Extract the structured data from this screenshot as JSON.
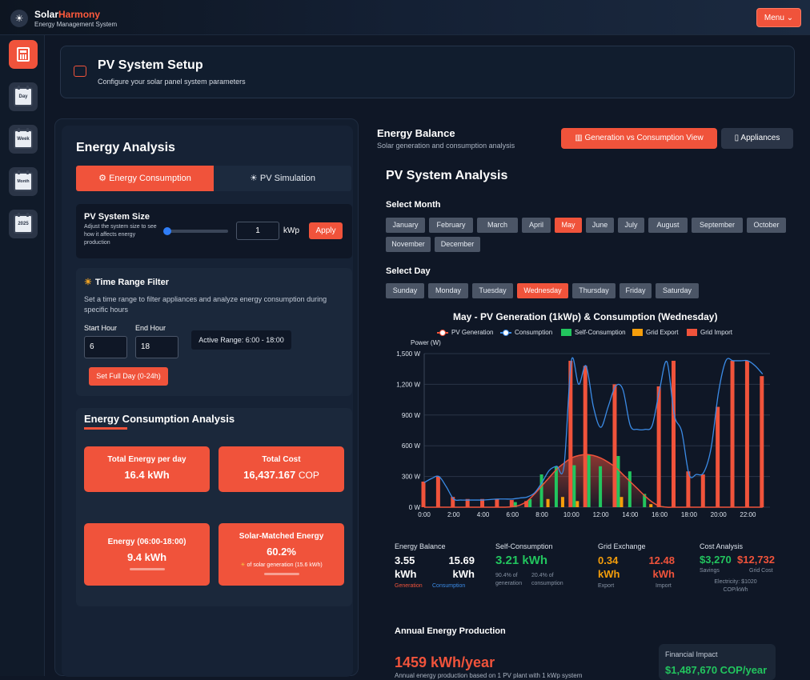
{
  "app": {
    "brand_a": "Solar",
    "brand_b": "Harmony",
    "subtitle": "Energy Management System",
    "menu_label": "Menu ⌄"
  },
  "sidebar": {
    "items": [
      {
        "icon": "calculator-icon",
        "label": ""
      },
      {
        "icon": "calendar-icon",
        "label": "Day"
      },
      {
        "icon": "calendar-icon",
        "label": "Week"
      },
      {
        "icon": "calendar-icon",
        "label": "Month"
      },
      {
        "icon": "calendar-icon",
        "label": "2025"
      }
    ]
  },
  "page_header": {
    "title": "PV System Setup",
    "subtitle": "Configure your solar panel system parameters"
  },
  "energy_analysis": {
    "title": "Energy Analysis",
    "tabs": [
      {
        "label": "Energy Consumption",
        "icon": "chip-icon"
      },
      {
        "label": "PV Simulation",
        "icon": "sun-icon"
      }
    ],
    "pv_size": {
      "title": "PV System Size",
      "description": "Adjust the system size to see how it affects energy production",
      "value": "1",
      "unit": "kWp",
      "apply": "Apply",
      "slider_fraction": 0.05
    },
    "time_filter": {
      "title": "Time Range Filter",
      "description": "Set a time range to filter appliances and analyze energy consumption during specific hours",
      "start_label": "Start Hour",
      "start_value": "6",
      "end_label": "End Hour",
      "end_value": "18",
      "active_range": "Active Range: 6:00 - 18:00",
      "full_day": "Set Full Day (0-24h)"
    },
    "consumption": {
      "title": "Energy Consumption Analysis",
      "total_energy": {
        "label": "Total Energy per day",
        "value": "16.4 kWh"
      },
      "total_cost": {
        "label": "Total Cost",
        "value": "16,437.167",
        "unit": "COP"
      },
      "range_energy": {
        "label": "Energy (06:00-18:00)",
        "value": "9.4 kWh"
      },
      "solar_matched": {
        "label": "Solar-Matched Energy",
        "value": "60.2%",
        "note": "of solar generation (15.6 kWh)"
      }
    }
  },
  "energy_balance": {
    "title": "Energy Balance",
    "subtitle": "Solar generation and consumption analysis",
    "view_button": "Generation vs Consumption View",
    "appliances_button": "Appliances"
  },
  "pv_analysis": {
    "title": "PV System Analysis",
    "month_label": "Select Month",
    "months": [
      "January",
      "February",
      "March",
      "April",
      "May",
      "June",
      "July",
      "August",
      "September",
      "October",
      "November",
      "December"
    ],
    "selected_month": "May",
    "day_label": "Select Day",
    "days": [
      "Sunday",
      "Monday",
      "Tuesday",
      "Wednesday",
      "Thursday",
      "Friday",
      "Saturday"
    ],
    "selected_day": "Wednesday"
  },
  "chart_data": {
    "type": "bar",
    "title": "May - PV Generation (1kWp) & Consumption (Wednesday)",
    "ylabel": "Power (W)",
    "ylim": [
      0,
      1500
    ],
    "yticks": [
      "0 W",
      "300 W",
      "600 W",
      "900 W",
      "1,200 W",
      "1,500 W"
    ],
    "xticks": [
      "0:00",
      "2:00",
      "4:00",
      "6:00",
      "8:00",
      "10:00",
      "12:00",
      "14:00",
      "16:00",
      "18:00",
      "20:00",
      "22:00"
    ],
    "legend": [
      "PV Generation",
      "Consumption",
      "Self-Consumption",
      "Grid Export",
      "Grid Import"
    ],
    "colors": {
      "pv_generation": "#f0533b",
      "consumption": "#3b8be6",
      "self_consumption": "#22c55e",
      "grid_export": "#f59e0b",
      "grid_import": "#f0533b"
    },
    "x": [
      0,
      0.5,
      1,
      1.5,
      2,
      2.5,
      3,
      3.5,
      4,
      4.5,
      5,
      5.5,
      6,
      6.5,
      7,
      7.5,
      8,
      8.5,
      9,
      9.5,
      10,
      10.5,
      11,
      11.5,
      12,
      12.5,
      13,
      13.5,
      14,
      14.5,
      15,
      15.5,
      16,
      16.5,
      17,
      17.5,
      18,
      18.5,
      19,
      19.5,
      20,
      20.5,
      21,
      21.5,
      22,
      22.5,
      23
    ],
    "consumption": [
      240,
      280,
      300,
      200,
      80,
      70,
      70,
      70,
      70,
      75,
      80,
      80,
      80,
      90,
      100,
      140,
      240,
      360,
      400,
      400,
      1430,
      1200,
      1380,
      980,
      780,
      980,
      1180,
      1150,
      800,
      760,
      760,
      800,
      1150,
      1420,
      900,
      740,
      320,
      320,
      340,
      580,
      1120,
      1430,
      1430,
      1430,
      1430,
      1380,
      1300
    ],
    "pv_generation": [
      0,
      0,
      0,
      0,
      0,
      0,
      0,
      0,
      0,
      0,
      0,
      0,
      5,
      20,
      60,
      130,
      210,
      290,
      370,
      430,
      480,
      505,
      515,
      505,
      480,
      440,
      390,
      320,
      250,
      180,
      110,
      50,
      10,
      0,
      0,
      0,
      0,
      0,
      0,
      0,
      0,
      0,
      0,
      0,
      0,
      0,
      0
    ],
    "hour_bars": {
      "hours": [
        0,
        1,
        2,
        3,
        4,
        5,
        6,
        7,
        8,
        9,
        10,
        11,
        12,
        13,
        14,
        15,
        16,
        17,
        18,
        19,
        20,
        21,
        22,
        23
      ],
      "grid_import": [
        250,
        300,
        100,
        80,
        80,
        80,
        70,
        60,
        0,
        0,
        1430,
        1380,
        0,
        1200,
        0,
        0,
        1180,
        1430,
        350,
        320,
        980,
        1430,
        1430,
        1280
      ],
      "self_consumption": [
        0,
        0,
        0,
        0,
        0,
        0,
        50,
        80,
        320,
        400,
        410,
        510,
        400,
        500,
        350,
        130,
        10,
        0,
        0,
        0,
        0,
        0,
        0,
        0
      ],
      "grid_export": [
        0,
        0,
        0,
        0,
        0,
        0,
        0,
        0,
        80,
        100,
        60,
        0,
        0,
        100,
        0,
        30,
        0,
        0,
        0,
        0,
        0,
        0,
        0,
        0
      ]
    }
  },
  "summary": {
    "balance": {
      "label": "Energy Balance",
      "gen": "3.55 kWh",
      "gen_label": "Generation",
      "cons": "15.69 kWh",
      "cons_label": "Consumption"
    },
    "self": {
      "label": "Self-Consumption",
      "value": "3.21 kWh",
      "a": "90.4% of generation",
      "b": "20.4% of consumption"
    },
    "grid": {
      "label": "Grid Exchange",
      "export": "0.34 kWh",
      "export_label": "Export",
      "import": "12.48 kWh",
      "import_label": "Import"
    },
    "cost": {
      "label": "Cost Analysis",
      "savings": "$3,270",
      "savings_label": "Savings",
      "grid_cost": "$12,732",
      "grid_cost_label": "Grid Cost",
      "price": "Electricity: $1020 COP/kWh"
    }
  },
  "annual": {
    "title": "Annual Energy Production",
    "value": "1459 kWh/year",
    "desc": "Annual energy production based on 1 PV plant with 1 kWp system",
    "financial_label": "Financial Impact",
    "financial_value": "$1,487,670 COP/year"
  }
}
